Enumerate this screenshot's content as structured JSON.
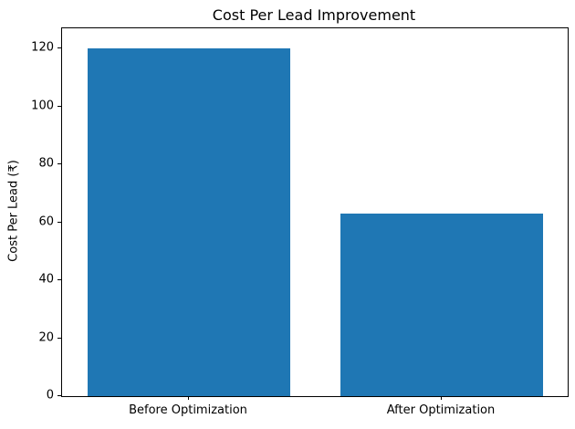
{
  "chart_data": {
    "type": "bar",
    "title": "Cost Per Lead Improvement",
    "xlabel": "",
    "ylabel": "Cost Per Lead (₹)",
    "categories": [
      "Before Optimization",
      "After Optimization"
    ],
    "values": [
      120,
      63
    ],
    "yticks": [
      0,
      20,
      40,
      60,
      80,
      100,
      120
    ],
    "ylim": [
      0,
      127
    ],
    "bar_color": "#1f77b4",
    "axis_color": "#000000",
    "background_color": "#ffffff",
    "grid": false,
    "legend_position": "none",
    "bar_width_fraction": 0.8
  }
}
